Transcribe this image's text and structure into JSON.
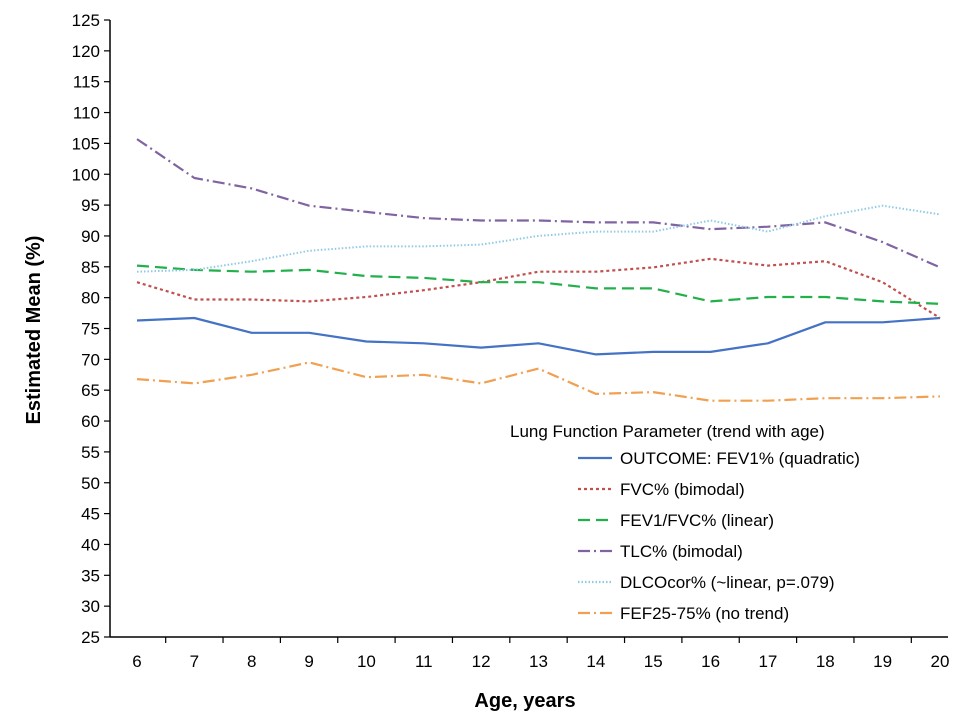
{
  "chart_data": {
    "type": "line",
    "title": "",
    "xlabel": "Age, years",
    "ylabel": "Estimated Mean (%)",
    "x": [
      6,
      7,
      8,
      9,
      10,
      11,
      12,
      13,
      14,
      15,
      16,
      17,
      18,
      19,
      20
    ],
    "ylim": [
      25,
      125
    ],
    "ystep": 5,
    "grid": false,
    "legend": {
      "title": "Lung Function Parameter (trend with age)",
      "placement": "bottom-right"
    },
    "series": [
      {
        "name": "OUTCOME:  FEV1% (quadratic)",
        "color": "#4472c4",
        "dash": "solid",
        "values": [
          76.3,
          76.7,
          74.3,
          74.3,
          72.9,
          72.6,
          71.9,
          72.6,
          70.8,
          71.2,
          71.2,
          72.6,
          76.0,
          76.0,
          76.7
        ]
      },
      {
        "name": "FVC% (bimodal)",
        "color": "#c0504d",
        "dash": "dot",
        "values": [
          82.5,
          79.7,
          79.7,
          79.4,
          80.1,
          81.2,
          82.5,
          84.2,
          84.2,
          84.9,
          86.3,
          85.2,
          85.9,
          82.5,
          76.7
        ]
      },
      {
        "name": "FEV1/FVC% (linear)",
        "color": "#22b04b",
        "dash": "dash",
        "values": [
          85.2,
          84.5,
          84.2,
          84.5,
          83.5,
          83.2,
          82.5,
          82.5,
          81.5,
          81.5,
          79.4,
          80.1,
          80.1,
          79.4,
          79.0
        ]
      },
      {
        "name": "TLC% (bimodal)",
        "color": "#8064a2",
        "dash": "dashdot",
        "values": [
          105.7,
          99.4,
          97.7,
          94.9,
          93.9,
          92.9,
          92.5,
          92.5,
          92.2,
          92.2,
          91.1,
          91.5,
          92.2,
          89.0,
          84.9
        ]
      },
      {
        "name": "DLCOcor% (~linear, p=.079)",
        "color": "#8ecae6",
        "dash": "finedot",
        "values": [
          84.2,
          84.5,
          85.9,
          87.6,
          88.3,
          88.3,
          88.6,
          90.0,
          90.7,
          90.7,
          92.5,
          90.7,
          93.2,
          94.9,
          93.5
        ]
      },
      {
        "name": "FEF25-75% (no trend)",
        "color": "#f0a050",
        "dash": "longdashdot",
        "values": [
          66.8,
          66.1,
          67.5,
          69.5,
          67.1,
          67.5,
          66.1,
          68.5,
          64.4,
          64.7,
          63.3,
          63.3,
          63.7,
          63.7,
          64.0
        ]
      }
    ]
  }
}
